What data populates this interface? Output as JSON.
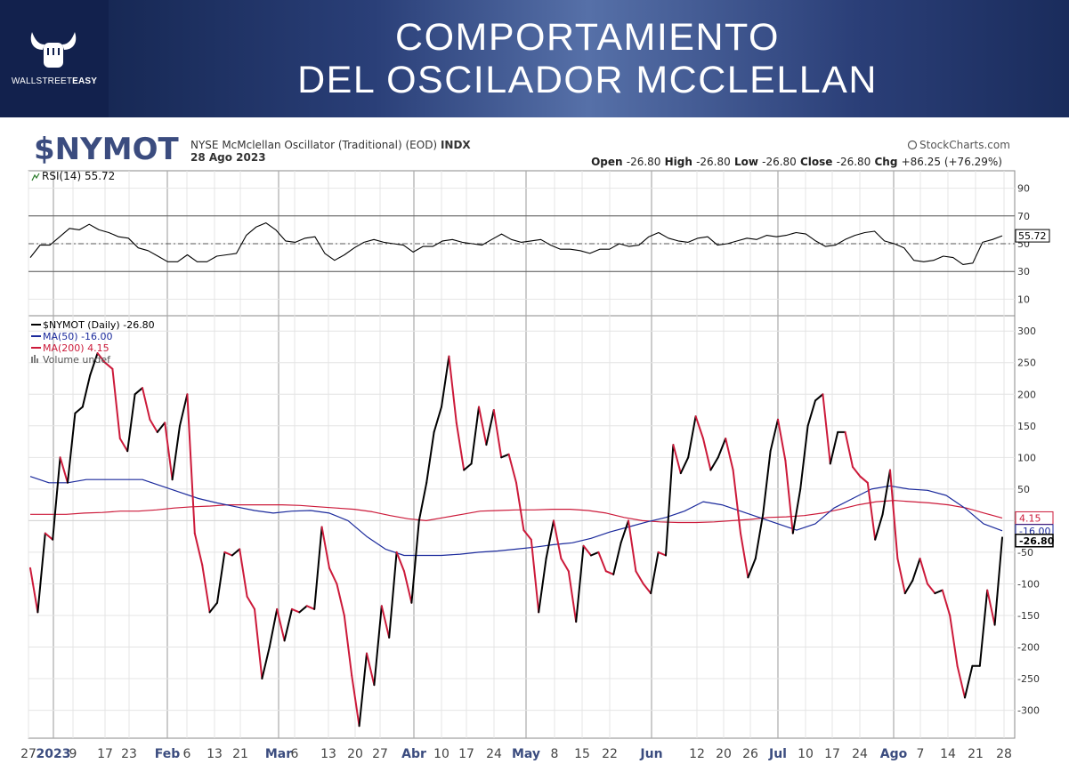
{
  "banner": {
    "title_line1": "COMPORTAMIENTO",
    "title_line2": "DEL OSCILADOR MCCLELLAN",
    "logo_text_a": "WALLSTREET",
    "logo_text_b": "EASY",
    "background": "#1b2b5e"
  },
  "header": {
    "symbol": "$NYMOT",
    "description": "NYSE McMclellan Oscillator (Traditional) (EOD)",
    "exchange": "INDX",
    "date": "28 Ago 2023",
    "source": "StockCharts.com",
    "ohlc": [
      {
        "label": "Open",
        "value": "-26.80"
      },
      {
        "label": "High",
        "value": "-26.80"
      },
      {
        "label": "Low",
        "value": "-26.80"
      },
      {
        "label": "Close",
        "value": "-26.80"
      },
      {
        "label": "Chg",
        "value": "+86.25 (+76.29%)"
      }
    ],
    "symbol_color": "#3b4c7f"
  },
  "chart_data": [
    {
      "type": "line",
      "panel": "RSI",
      "legend": "RSI(14) 55.72",
      "last_value_label": "55.72",
      "ylim": [
        0,
        100
      ],
      "y_ticks": [
        90,
        70,
        50,
        30,
        10
      ],
      "reference_lines": [
        70,
        50,
        30
      ],
      "series": [
        {
          "name": "RSI(14)",
          "color": "#000000",
          "values": [
            40,
            49,
            49,
            55,
            61,
            60,
            64,
            60,
            58,
            55,
            54,
            47,
            45,
            41,
            37,
            37,
            42,
            37,
            37,
            41,
            42,
            43,
            56,
            62,
            65,
            60,
            52,
            51,
            54,
            55,
            43,
            38,
            42,
            47,
            51,
            53,
            51,
            50,
            49,
            44,
            48,
            48,
            52,
            53,
            51,
            50,
            49,
            53,
            57,
            53,
            51,
            52,
            53,
            49,
            46,
            46,
            45,
            43,
            46,
            46,
            50,
            48,
            49,
            55,
            58,
            54,
            52,
            51,
            54,
            55,
            49,
            50,
            52,
            54,
            53,
            56,
            55,
            56,
            58,
            57,
            52,
            48,
            49,
            53,
            56,
            58,
            59,
            52,
            50,
            47,
            38,
            37,
            38,
            41,
            40,
            35,
            36,
            51,
            53,
            55.72
          ]
        }
      ]
    },
    {
      "type": "line",
      "panel": "Price",
      "ylim": [
        -340,
        320
      ],
      "y_ticks": [
        300,
        250,
        200,
        150,
        100,
        50,
        -50,
        -100,
        -150,
        -200,
        -250,
        -300
      ],
      "legend": [
        {
          "label": "$NYMOT (Daily) -26.80",
          "color": "#000000"
        },
        {
          "label": "MA(50) -16.00",
          "color": "#1b2a9c"
        },
        {
          "label": "MA(200) 4.15",
          "color": "#cc1a3a"
        },
        {
          "label": "Volume undef",
          "color": "#555555"
        }
      ],
      "value_tags": [
        {
          "text": "4.15",
          "color": "#cc1a3a"
        },
        {
          "text": "-16.00",
          "color": "#1b2a9c"
        },
        {
          "text": "-26.80",
          "color": "#000000"
        }
      ],
      "x_ticks": [
        {
          "label": "27",
          "bold": false
        },
        {
          "label": "2023",
          "bold": true
        },
        {
          "label": "9",
          "bold": false
        },
        {
          "label": "17",
          "bold": false
        },
        {
          "label": "23",
          "bold": false
        },
        {
          "label": "Feb",
          "bold": true
        },
        {
          "label": "6",
          "bold": false
        },
        {
          "label": "13",
          "bold": false
        },
        {
          "label": "21",
          "bold": false
        },
        {
          "label": "Mar",
          "bold": true
        },
        {
          "label": "6",
          "bold": false
        },
        {
          "label": "13",
          "bold": false
        },
        {
          "label": "20",
          "bold": false
        },
        {
          "label": "27",
          "bold": false
        },
        {
          "label": "Abr",
          "bold": true
        },
        {
          "label": "10",
          "bold": false
        },
        {
          "label": "17",
          "bold": false
        },
        {
          "label": "24",
          "bold": false
        },
        {
          "label": "May",
          "bold": true
        },
        {
          "label": "8",
          "bold": false
        },
        {
          "label": "15",
          "bold": false
        },
        {
          "label": "22",
          "bold": false
        },
        {
          "label": "Jun",
          "bold": true
        },
        {
          "label": "12",
          "bold": false
        },
        {
          "label": "20",
          "bold": false
        },
        {
          "label": "26",
          "bold": false
        },
        {
          "label": "Jul",
          "bold": true
        },
        {
          "label": "10",
          "bold": false
        },
        {
          "label": "17",
          "bold": false
        },
        {
          "label": "24",
          "bold": false
        },
        {
          "label": "Ago",
          "bold": true
        },
        {
          "label": "7",
          "bold": false
        },
        {
          "label": "14",
          "bold": false
        },
        {
          "label": "21",
          "bold": false
        },
        {
          "label": "28",
          "bold": false
        }
      ],
      "series": [
        {
          "name": "$NYMOT (Daily)",
          "color": "#000000",
          "down_color": "#cc1a3a",
          "values": [
            -75,
            -145,
            -20,
            -30,
            100,
            60,
            170,
            180,
            230,
            265,
            250,
            240,
            130,
            110,
            200,
            210,
            160,
            140,
            155,
            65,
            150,
            200,
            -20,
            -70,
            -145,
            -130,
            -50,
            -55,
            -45,
            -120,
            -140,
            -250,
            -200,
            -140,
            -190,
            -140,
            -145,
            -135,
            -140,
            -10,
            -75,
            -100,
            -150,
            -245,
            -325,
            -210,
            -260,
            -135,
            -185,
            -50,
            -80,
            -130,
            0,
            60,
            140,
            180,
            260,
            155,
            80,
            90,
            180,
            120,
            175,
            100,
            105,
            60,
            -15,
            -30,
            -145,
            -60,
            0,
            -60,
            -80,
            -160,
            -40,
            -55,
            -50,
            -80,
            -85,
            -35,
            0,
            -80,
            -100,
            -115,
            -50,
            -55,
            120,
            75,
            100,
            165,
            130,
            80,
            100,
            130,
            80,
            -20,
            -90,
            -60,
            10,
            110,
            160,
            95,
            -20,
            50,
            150,
            190,
            200,
            90,
            140,
            140,
            85,
            70,
            60,
            -30,
            10,
            80,
            -60,
            -115,
            -95,
            -60,
            -100,
            -115,
            -110,
            -150,
            -230,
            -280,
            -230,
            -230,
            -110,
            -165,
            -26.8
          ]
        },
        {
          "name": "MA(50)",
          "color": "#1b2a9c",
          "values": [
            70,
            60,
            60,
            65,
            65,
            65,
            65,
            55,
            45,
            35,
            28,
            22,
            16,
            12,
            15,
            16,
            12,
            0,
            -25,
            -45,
            -55,
            -55,
            -55,
            -53,
            -50,
            -48,
            -45,
            -42,
            -38,
            -35,
            -28,
            -18,
            -10,
            -2,
            5,
            15,
            30,
            25,
            15,
            5,
            -5,
            -15,
            -5,
            20,
            35,
            50,
            55,
            50,
            48,
            40,
            20,
            -5,
            -16
          ]
        },
        {
          "name": "MA(200)",
          "color": "#cc1a3a",
          "values": [
            10,
            10,
            10,
            12,
            13,
            15,
            15,
            17,
            20,
            22,
            23,
            25,
            25,
            25,
            25,
            24,
            22,
            20,
            18,
            14,
            8,
            3,
            0,
            5,
            10,
            15,
            16,
            17,
            17,
            18,
            18,
            16,
            12,
            5,
            0,
            -2,
            -3,
            -3,
            -2,
            0,
            2,
            5,
            6,
            8,
            12,
            18,
            25,
            30,
            32,
            30,
            28,
            25,
            20,
            12,
            4.15
          ]
        }
      ]
    }
  ]
}
